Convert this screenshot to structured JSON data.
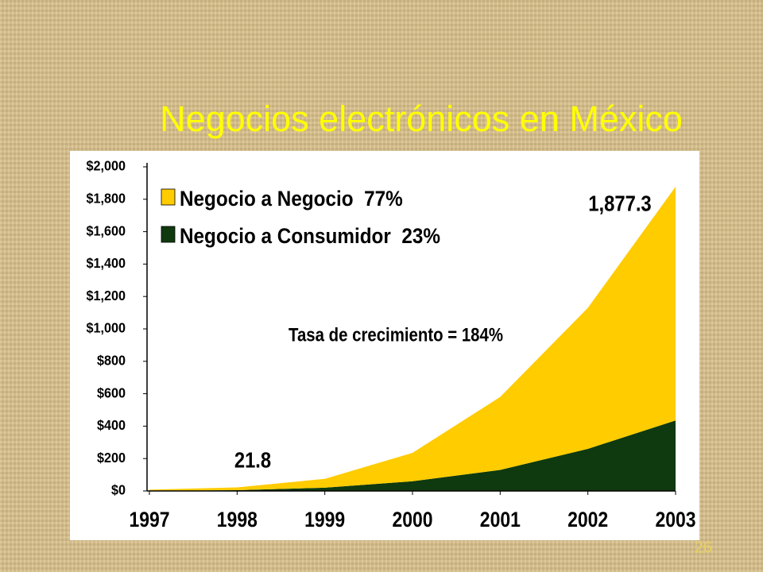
{
  "chart_data": {
    "type": "stacked-area",
    "title": "Negocios electrónicos en México",
    "page_number": "26",
    "x": [
      1997,
      1998,
      1999,
      2000,
      2001,
      2002,
      2003
    ],
    "xlim": [
      1997,
      2003
    ],
    "xticks": [
      1997,
      1998,
      1999,
      2000,
      2001,
      2002,
      2003
    ],
    "ylim": [
      0,
      2000
    ],
    "yticks": [
      {
        "value": 0,
        "label": "$0"
      },
      {
        "value": 200,
        "label": "$200"
      },
      {
        "value": 400,
        "label": "$400"
      },
      {
        "value": 600,
        "label": "$600"
      },
      {
        "value": 800,
        "label": "$800"
      },
      {
        "value": 1000,
        "label": "$1,000"
      },
      {
        "value": 1200,
        "label": "$1,200"
      },
      {
        "value": 1400,
        "label": "$1,400"
      },
      {
        "value": 1600,
        "label": "$1,600"
      },
      {
        "value": 1800,
        "label": "$1,800"
      },
      {
        "value": 2000,
        "label": "$2,000"
      }
    ],
    "series": [
      {
        "name": "Negocio a Consumidor  23%",
        "color": "#0f3a0f",
        "values": [
          0,
          5,
          20,
          60,
          130,
          260,
          435
        ]
      },
      {
        "name": "Negocio a Negocio  77%",
        "color": "#ffcc00",
        "values": [
          8,
          16.8,
          55,
          175,
          450,
          870,
          1442.3
        ]
      }
    ],
    "legend_order": [
      1,
      0
    ],
    "annotations": [
      "Tasa de crecimiento = 184%",
      "21.8",
      "1,877.3"
    ]
  }
}
